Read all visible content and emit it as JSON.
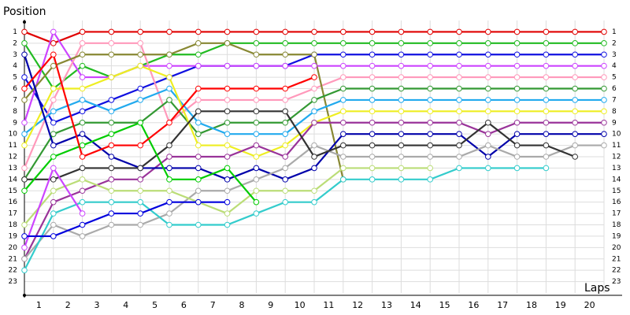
{
  "chart_data": {
    "type": "lap",
    "ylabel": "Position",
    "xlabel": "Laps",
    "x": [
      0,
      1,
      2,
      3,
      4,
      5,
      6,
      7,
      8,
      9,
      10,
      11,
      12,
      13,
      14,
      15,
      16,
      17,
      18,
      19,
      20
    ],
    "xlim": [
      0,
      20
    ],
    "xticks": [
      {
        "value": 0.5,
        "label": "1"
      },
      {
        "value": 1.5,
        "label": "2"
      },
      {
        "value": 2.5,
        "label": "3"
      },
      {
        "value": 3.5,
        "label": "4"
      },
      {
        "value": 4.5,
        "label": "5"
      },
      {
        "value": 5.5,
        "label": "6"
      },
      {
        "value": 6.5,
        "label": "7"
      },
      {
        "value": 7.5,
        "label": "8"
      },
      {
        "value": 8.5,
        "label": "9"
      },
      {
        "value": 9.5,
        "label": "10"
      },
      {
        "value": 10.5,
        "label": "11"
      },
      {
        "value": 11.5,
        "label": "12"
      },
      {
        "value": 12.5,
        "label": "13"
      },
      {
        "value": 13.5,
        "label": "14"
      },
      {
        "value": 14.5,
        "label": "15"
      },
      {
        "value": 15.5,
        "label": "16"
      },
      {
        "value": 16.5,
        "label": "17"
      },
      {
        "value": 17.5,
        "label": "18"
      },
      {
        "value": 18.5,
        "label": "19"
      },
      {
        "value": 19.5,
        "label": "20"
      }
    ],
    "ylim": [
      0,
      24
    ],
    "y_inverted": true,
    "yticks": [
      1,
      2,
      3,
      4,
      5,
      6,
      7,
      8,
      9,
      10,
      11,
      12,
      13,
      14,
      15,
      16,
      17,
      18,
      19,
      20,
      21,
      22,
      23
    ],
    "grid": true,
    "series": [
      {
        "color": "#e00000",
        "values": [
          1,
          2,
          1,
          1,
          1,
          1,
          1,
          1,
          1,
          1,
          1,
          1,
          1,
          1,
          1,
          1,
          1,
          1,
          1,
          1,
          1
        ]
      },
      {
        "color": "#22bb22",
        "values": [
          2,
          6,
          4,
          5,
          4,
          3,
          3,
          2,
          2,
          2,
          2,
          2,
          2,
          2,
          2,
          2,
          2,
          2,
          2,
          2,
          2
        ]
      },
      {
        "color": "#1010e0",
        "values": [
          5,
          9,
          8,
          7,
          6,
          5,
          4,
          4,
          4,
          4,
          3,
          3,
          3,
          3,
          3,
          3,
          3,
          3,
          3,
          3,
          3
        ]
      },
      {
        "color": "#cc44ff",
        "values": [
          9,
          1,
          5,
          5,
          4,
          4,
          4,
          4,
          4,
          4,
          4,
          4,
          4,
          4,
          4,
          4,
          4,
          4,
          4,
          4,
          4
        ]
      },
      {
        "color": "#ff99bb",
        "values": [
          13,
          7,
          2,
          2,
          2,
          9,
          7,
          7,
          7,
          7,
          6,
          5,
          5,
          5,
          5,
          5,
          5,
          5,
          5,
          5,
          5
        ]
      },
      {
        "color": "#888833",
        "values": [
          7,
          4,
          3,
          3,
          3,
          3,
          2,
          2,
          3,
          3,
          3,
          14,
          null,
          null,
          null,
          null,
          null,
          null,
          null,
          null,
          null
        ]
      },
      {
        "color": "#339933",
        "values": [
          14,
          10,
          9,
          9,
          9,
          7,
          10,
          9,
          9,
          9,
          7,
          6,
          6,
          6,
          6,
          6,
          6,
          6,
          6,
          6,
          6
        ]
      },
      {
        "color": "#22aaee",
        "values": [
          10,
          8,
          7,
          8,
          7,
          6,
          9,
          10,
          10,
          10,
          8,
          7,
          7,
          7,
          7,
          7,
          7,
          7,
          7,
          7,
          7
        ]
      },
      {
        "color": "#eeee22",
        "values": [
          11,
          6,
          6,
          5,
          4,
          5,
          11,
          11,
          12,
          11,
          9,
          8,
          8,
          8,
          8,
          8,
          8,
          8,
          8,
          8,
          8
        ]
      },
      {
        "color": "#993399",
        "values": [
          21,
          16,
          15,
          14,
          14,
          12,
          12,
          12,
          11,
          12,
          9,
          9,
          9,
          9,
          9,
          9,
          10,
          9,
          9,
          9,
          9
        ]
      },
      {
        "color": "#0000aa",
        "values": [
          3,
          11,
          10,
          12,
          13,
          13,
          13,
          14,
          13,
          14,
          13,
          10,
          10,
          10,
          10,
          10,
          12,
          10,
          10,
          10,
          10
        ]
      },
      {
        "color": "#aaaaaa",
        "values": [
          21,
          18,
          19,
          18,
          18,
          17,
          15,
          15,
          14,
          13,
          11,
          12,
          12,
          12,
          12,
          12,
          11,
          12,
          12,
          11,
          11
        ]
      },
      {
        "color": "#333333",
        "values": [
          14,
          14,
          13,
          13,
          13,
          11,
          8,
          8,
          8,
          8,
          12,
          11,
          11,
          11,
          11,
          11,
          9,
          11,
          11,
          12,
          null
        ]
      },
      {
        "color": "#bbdd77",
        "values": [
          18,
          15,
          14,
          15,
          15,
          15,
          16,
          17,
          15,
          15,
          15,
          13,
          13,
          13,
          13,
          null,
          null,
          null,
          null,
          null,
          null
        ]
      },
      {
        "color": "#33cccc",
        "values": [
          22,
          17,
          16,
          16,
          16,
          18,
          18,
          18,
          17,
          16,
          16,
          14,
          14,
          14,
          14,
          13,
          13,
          13,
          13,
          null,
          null
        ]
      },
      {
        "color": "#00cc00",
        "values": [
          15,
          12,
          11,
          10,
          9,
          14,
          14,
          13,
          16,
          null,
          null,
          null,
          null,
          null,
          null,
          null,
          null,
          null,
          null,
          null,
          null
        ]
      },
      {
        "color": "#ff0000",
        "values": [
          6,
          3,
          12,
          11,
          11,
          9,
          6,
          6,
          6,
          6,
          5,
          null,
          null,
          null,
          null,
          null,
          null,
          null,
          null,
          null,
          null
        ]
      },
      {
        "color": "#cc44ff",
        "values": [
          20,
          13,
          17,
          null,
          null,
          null,
          null,
          null,
          null,
          null,
          null,
          null,
          null,
          null,
          null,
          null,
          null,
          null,
          null,
          null,
          null
        ]
      },
      {
        "color": "#0000dd",
        "values": [
          19,
          19,
          18,
          17,
          17,
          16,
          16,
          16,
          null,
          null,
          null,
          null,
          null,
          null,
          null,
          null,
          null,
          null,
          null,
          null,
          null
        ]
      }
    ]
  }
}
